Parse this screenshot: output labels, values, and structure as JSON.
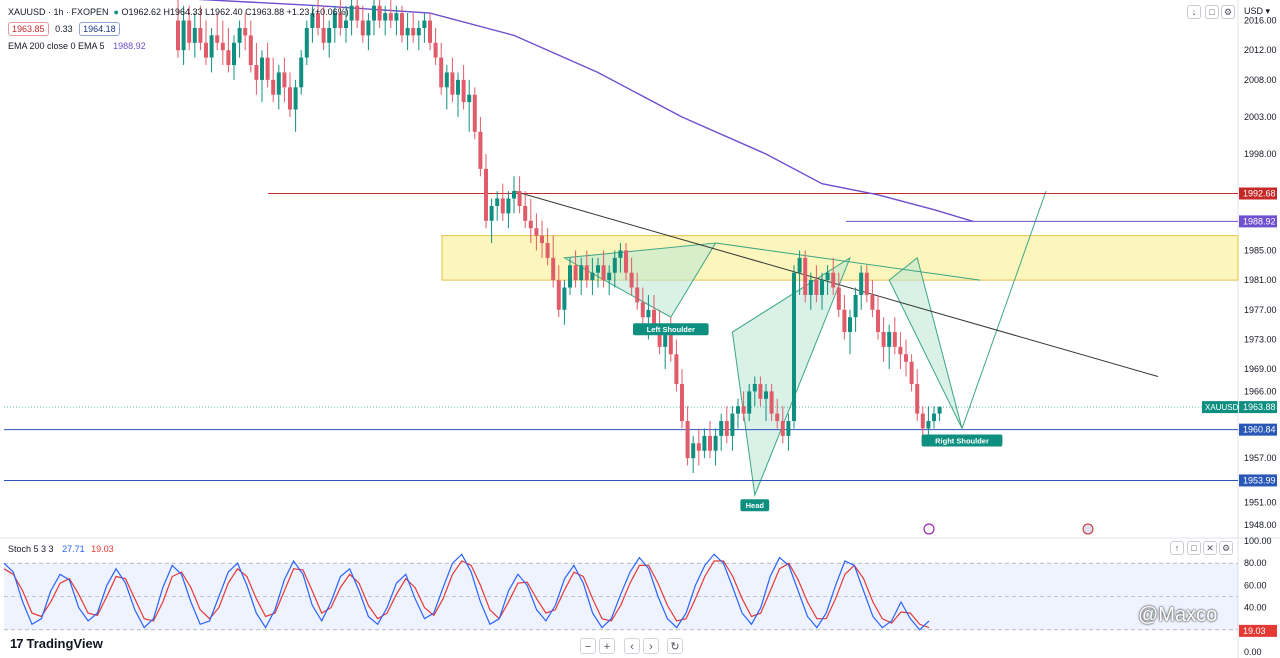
{
  "header": {
    "symbol_line": "XAUUSD · 1h · FXOPEN",
    "ohlc": "O1962.62 H1964.33 L1962.40 C1963.88 +1.23 (+0.06%)",
    "bid": "1963.85",
    "spread": "0.33",
    "ask": "1964.18",
    "ema_label": "EMA 200 close 0 EMA 5",
    "ema_value": "1988.92",
    "currency": "USD"
  },
  "price_tags": {
    "resistance": "1992.68",
    "ema": "1988.92",
    "symbol": "XAUUSD",
    "last": "1963.88",
    "support1": "1960.84",
    "support2": "1953.99",
    "stoch": "19.03"
  },
  "pattern_labels": {
    "left": "Left Shoulder",
    "head": "Head",
    "right": "Right Shoulder"
  },
  "stoch": {
    "label": "Stoch 5 3 3",
    "k_value": "27.71",
    "d_value": "19.03"
  },
  "branding": {
    "logo": "TradingView",
    "watermark": "@Maxco"
  },
  "bottom_controls": [
    "−",
    "+",
    "‹",
    "›",
    "↻"
  ],
  "colors": {
    "up": "#0e8f80",
    "down": "#e05c6a",
    "ema": "#6f4fcf",
    "zone": "#fbf1a6",
    "triangle": "#b9e6d3",
    "support": "#2957b8",
    "resistance": "#c62828",
    "stoch_k": "#2962ff",
    "stoch_d": "#e53935"
  },
  "chart_data": {
    "type": "candlestick",
    "symbol": "XAUUSD",
    "timeframe": "1h",
    "ylim": [
      1946.5,
      2018.5
    ],
    "y_ticks": [
      1948,
      1951,
      1953.99,
      1957,
      1960.84,
      1963.88,
      1966,
      1969,
      1973,
      1977,
      1981,
      1985,
      1988.92,
      1992.68,
      1998,
      2003,
      2008,
      2012,
      2016
    ],
    "candles": [
      [
        2016,
        2019,
        2011,
        2012
      ],
      [
        2012,
        2018,
        2010,
        2016
      ],
      [
        2016,
        2018,
        2012,
        2013
      ],
      [
        2013,
        2017,
        2011,
        2015
      ],
      [
        2015,
        2018,
        2012,
        2013
      ],
      [
        2013,
        2016,
        2010,
        2011
      ],
      [
        2011,
        2015,
        2009,
        2014
      ],
      [
        2014,
        2017,
        2012,
        2013
      ],
      [
        2013,
        2016,
        2010,
        2012
      ],
      [
        2012,
        2015,
        2009,
        2010
      ],
      [
        2010,
        2014,
        2008,
        2013
      ],
      [
        2013,
        2016,
        2011,
        2015
      ],
      [
        2015,
        2017,
        2012,
        2014
      ],
      [
        2014,
        2016,
        2009,
        2010
      ],
      [
        2010,
        2013,
        2006,
        2008
      ],
      [
        2008,
        2012,
        2005,
        2011
      ],
      [
        2011,
        2013,
        2007,
        2008
      ],
      [
        2008,
        2011,
        2005,
        2006
      ],
      [
        2006,
        2010,
        2004,
        2009
      ],
      [
        2009,
        2011,
        2005,
        2007
      ],
      [
        2007,
        2009,
        2003,
        2004
      ],
      [
        2004,
        2008,
        2001,
        2007
      ],
      [
        2007,
        2012,
        2006,
        2011
      ],
      [
        2011,
        2016,
        2010,
        2015
      ],
      [
        2015,
        2018,
        2013,
        2017
      ],
      [
        2017,
        2019,
        2014,
        2015
      ],
      [
        2015,
        2018,
        2012,
        2013
      ],
      [
        2013,
        2016,
        2011,
        2015
      ],
      [
        2015,
        2018,
        2013,
        2017
      ],
      [
        2017,
        2019,
        2014,
        2015
      ],
      [
        2015,
        2018,
        2013,
        2016
      ],
      [
        2016,
        2019,
        2014,
        2018
      ],
      [
        2018,
        2019,
        2015,
        2016
      ],
      [
        2016,
        2018,
        2013,
        2014
      ],
      [
        2014,
        2017,
        2012,
        2016
      ],
      [
        2016,
        2019,
        2014,
        2018
      ],
      [
        2018,
        2019,
        2015,
        2016
      ],
      [
        2016,
        2018,
        2014,
        2017
      ],
      [
        2017,
        2019,
        2015,
        2016
      ],
      [
        2016,
        2018,
        2014,
        2017
      ],
      [
        2017,
        2018,
        2013,
        2014
      ],
      [
        2014,
        2017,
        2012,
        2015
      ],
      [
        2015,
        2017,
        2013,
        2014
      ],
      [
        2014,
        2016,
        2012,
        2015
      ],
      [
        2015,
        2017,
        2013,
        2016
      ],
      [
        2016,
        2017,
        2012,
        2013
      ],
      [
        2013,
        2015,
        2010,
        2011
      ],
      [
        2011,
        2013,
        2006,
        2007
      ],
      [
        2007,
        2010,
        2004,
        2009
      ],
      [
        2009,
        2011,
        2005,
        2006
      ],
      [
        2006,
        2009,
        2003,
        2008
      ],
      [
        2008,
        2010,
        2004,
        2005
      ],
      [
        2005,
        2008,
        2001,
        2006
      ],
      [
        2006,
        2007,
        2000,
        2001
      ],
      [
        2001,
        2003,
        1995,
        1996
      ],
      [
        1996,
        1998,
        1988,
        1989
      ],
      [
        1989,
        1992,
        1986,
        1991
      ],
      [
        1991,
        1993,
        1989,
        1992
      ],
      [
        1992,
        1994,
        1989,
        1990
      ],
      [
        1990,
        1993,
        1988,
        1992
      ],
      [
        1992,
        1995,
        1990,
        1993
      ],
      [
        1993,
        1995,
        1990,
        1991
      ],
      [
        1991,
        1993,
        1988,
        1989
      ],
      [
        1989,
        1992,
        1986,
        1988
      ],
      [
        1988,
        1990,
        1985,
        1987
      ],
      [
        1987,
        1989,
        1984,
        1986
      ],
      [
        1986,
        1988,
        1983,
        1984
      ],
      [
        1984,
        1987,
        1980,
        1981
      ],
      [
        1981,
        1983,
        1976,
        1977
      ],
      [
        1977,
        1981,
        1975,
        1980
      ],
      [
        1980,
        1984,
        1979,
        1983
      ],
      [
        1983,
        1985,
        1980,
        1981
      ],
      [
        1981,
        1984,
        1979,
        1983
      ],
      [
        1983,
        1985,
        1980,
        1981
      ],
      [
        1981,
        1984,
        1979,
        1982
      ],
      [
        1982,
        1984,
        1980,
        1983
      ],
      [
        1983,
        1985,
        1980,
        1981
      ],
      [
        1981,
        1983,
        1979,
        1982
      ],
      [
        1982,
        1985,
        1980,
        1984
      ],
      [
        1984,
        1986,
        1982,
        1985
      ],
      [
        1985,
        1986,
        1981,
        1982
      ],
      [
        1982,
        1984,
        1979,
        1980
      ],
      [
        1980,
        1982,
        1977,
        1978
      ],
      [
        1978,
        1980,
        1975,
        1976
      ],
      [
        1976,
        1979,
        1973,
        1977
      ],
      [
        1977,
        1979,
        1974,
        1975
      ],
      [
        1975,
        1977,
        1971,
        1972
      ],
      [
        1972,
        1975,
        1969,
        1974
      ],
      [
        1974,
        1976,
        1970,
        1971
      ],
      [
        1971,
        1973,
        1966,
        1967
      ],
      [
        1967,
        1969,
        1961,
        1962
      ],
      [
        1962,
        1964,
        1956,
        1957
      ],
      [
        1957,
        1960,
        1955,
        1959
      ],
      [
        1959,
        1961,
        1956,
        1958
      ],
      [
        1958,
        1961,
        1957,
        1960
      ],
      [
        1960,
        1962,
        1957,
        1958
      ],
      [
        1958,
        1961,
        1956,
        1960
      ],
      [
        1960,
        1963,
        1958,
        1962
      ],
      [
        1962,
        1964,
        1959,
        1960
      ],
      [
        1960,
        1964,
        1958,
        1963
      ],
      [
        1963,
        1965,
        1961,
        1964
      ],
      [
        1964,
        1966,
        1962,
        1963
      ],
      [
        1963,
        1967,
        1962,
        1966
      ],
      [
        1966,
        1968,
        1964,
        1967
      ],
      [
        1967,
        1968,
        1964,
        1965
      ],
      [
        1965,
        1967,
        1962,
        1966
      ],
      [
        1966,
        1967,
        1962,
        1963
      ],
      [
        1963,
        1965,
        1961,
        1962
      ],
      [
        1962,
        1964,
        1959,
        1960
      ],
      [
        1960,
        1963,
        1958,
        1962
      ],
      [
        1962,
        1983,
        1961,
        1982
      ],
      [
        1982,
        1985,
        1979,
        1984
      ],
      [
        1984,
        1985,
        1978,
        1979
      ],
      [
        1979,
        1982,
        1977,
        1981
      ],
      [
        1981,
        1983,
        1978,
        1979
      ],
      [
        1979,
        1982,
        1977,
        1981
      ],
      [
        1981,
        1983,
        1979,
        1982
      ],
      [
        1982,
        1984,
        1979,
        1980
      ],
      [
        1980,
        1982,
        1976,
        1977
      ],
      [
        1977,
        1979,
        1973,
        1974
      ],
      [
        1974,
        1977,
        1971,
        1976
      ],
      [
        1976,
        1980,
        1974,
        1979
      ],
      [
        1979,
        1983,
        1977,
        1982
      ],
      [
        1982,
        1983,
        1978,
        1979
      ],
      [
        1979,
        1981,
        1976,
        1977
      ],
      [
        1977,
        1979,
        1973,
        1974
      ],
      [
        1974,
        1976,
        1970,
        1972
      ],
      [
        1972,
        1975,
        1969,
        1974
      ],
      [
        1974,
        1976,
        1971,
        1972
      ],
      [
        1972,
        1974,
        1969,
        1971
      ],
      [
        1971,
        1973,
        1968,
        1970
      ],
      [
        1970,
        1971,
        1966,
        1967
      ],
      [
        1967,
        1969,
        1962,
        1963
      ],
      [
        1963,
        1964,
        1960,
        1961
      ],
      [
        1961,
        1964,
        1960,
        1962
      ],
      [
        1962,
        1964,
        1961,
        1963
      ],
      [
        1963,
        1964,
        1962,
        1963.88
      ]
    ],
    "ema200": [
      [
        0,
        2019
      ],
      [
        25,
        2018
      ],
      [
        45,
        2017
      ],
      [
        60,
        2014
      ],
      [
        75,
        2009
      ],
      [
        90,
        2003
      ],
      [
        105,
        1998
      ],
      [
        115,
        1994
      ],
      [
        125,
        1992.5
      ],
      [
        135,
        1990.5
      ],
      [
        142,
        1988.92
      ]
    ],
    "horizontal_levels": [
      {
        "value": 1992.68,
        "kind": "resistance"
      },
      {
        "value": 1988.92,
        "kind": "ema"
      },
      {
        "value": 1960.84,
        "kind": "support"
      },
      {
        "value": 1953.99,
        "kind": "support"
      }
    ],
    "zone": {
      "from": 1981,
      "to": 1987
    },
    "trendline": [
      [
        60,
        1993
      ],
      [
        175,
        1968
      ]
    ],
    "pattern": {
      "points": [
        [
          69,
          1984
        ],
        [
          88,
          1976
        ],
        [
          96,
          1986
        ],
        [
          99,
          1974
        ],
        [
          103,
          1952
        ],
        [
          115,
          1972
        ],
        [
          120,
          1984
        ],
        [
          127,
          1981
        ],
        [
          132,
          1984
        ],
        [
          140,
          1961
        ],
        [
          155,
          1993
        ]
      ],
      "labels": [
        {
          "text": "Left Shoulder",
          "at": [
            88,
            1976
          ]
        },
        {
          "text": "Head",
          "at": [
            103,
            1952
          ]
        },
        {
          "text": "Right Shoulder",
          "at": [
            140,
            1961
          ]
        }
      ]
    },
    "stochastic": {
      "params": "5 3 3",
      "ylim": [
        0,
        100
      ],
      "levels": [
        80,
        20
      ],
      "y_ticks": [
        0,
        20,
        40,
        60,
        80,
        100
      ],
      "k": [
        80,
        72,
        45,
        25,
        30,
        55,
        70,
        65,
        40,
        28,
        35,
        60,
        75,
        62,
        38,
        22,
        30,
        58,
        78,
        70,
        45,
        25,
        28,
        50,
        72,
        80,
        60,
        35,
        22,
        38,
        65,
        82,
        70,
        42,
        28,
        45,
        68,
        75,
        55,
        32,
        25,
        40,
        62,
        70,
        48,
        30,
        35,
        58,
        80,
        88,
        72,
        45,
        25,
        30,
        55,
        70,
        60,
        38,
        28,
        42,
        66,
        78,
        62,
        35,
        22,
        30,
        52,
        72,
        85,
        75,
        50,
        30,
        22,
        35,
        60,
        78,
        88,
        80,
        58,
        35,
        25,
        40,
        68,
        85,
        78,
        55,
        32,
        22,
        35,
        60,
        82,
        78,
        55,
        32,
        22,
        28,
        45,
        30,
        20,
        28
      ],
      "d": [
        75,
        70,
        55,
        35,
        32,
        45,
        62,
        66,
        52,
        35,
        33,
        50,
        68,
        66,
        48,
        30,
        28,
        45,
        68,
        72,
        58,
        38,
        30,
        40,
        62,
        75,
        68,
        48,
        32,
        35,
        55,
        75,
        74,
        55,
        35,
        40,
        58,
        70,
        62,
        42,
        30,
        35,
        52,
        66,
        58,
        40,
        33,
        48,
        70,
        82,
        78,
        60,
        38,
        30,
        45,
        62,
        63,
        48,
        35,
        38,
        56,
        72,
        68,
        48,
        30,
        28,
        42,
        62,
        78,
        78,
        62,
        42,
        28,
        30,
        48,
        68,
        82,
        82,
        68,
        48,
        32,
        35,
        55,
        75,
        80,
        65,
        45,
        30,
        30,
        48,
        70,
        78,
        66,
        45,
        30,
        26,
        36,
        35,
        25,
        22
      ]
    }
  }
}
